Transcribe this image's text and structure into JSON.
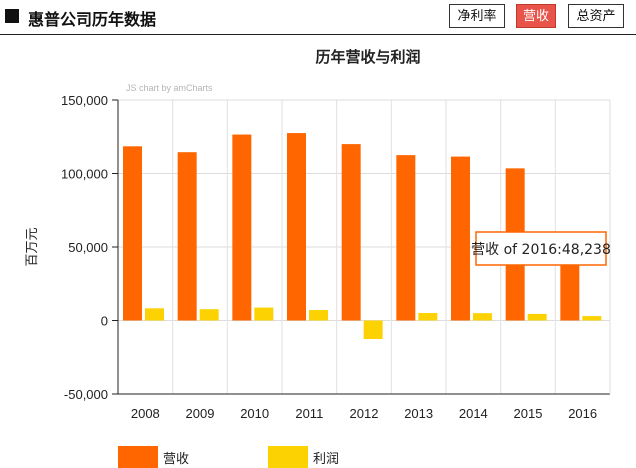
{
  "header": {
    "title": "惠普公司历年数据",
    "tabs": [
      {
        "label": "净利率",
        "active": false
      },
      {
        "label": "营收",
        "active": true
      },
      {
        "label": "总资产",
        "active": false
      }
    ]
  },
  "chart_data": {
    "type": "bar",
    "title": "历年营收与利润",
    "credit": "JS chart by amCharts",
    "ylabel": "百万元",
    "xlabel": "",
    "ylim": [
      -50000,
      150000
    ],
    "yticks": [
      150000,
      100000,
      50000,
      0,
      -50000
    ],
    "ytick_labels": [
      "150,000",
      "100,000",
      "50,000",
      "0",
      "-50,000"
    ],
    "categories": [
      "2008",
      "2009",
      "2010",
      "2011",
      "2012",
      "2013",
      "2014",
      "2015",
      "2016"
    ],
    "series": [
      {
        "name": "营收",
        "color": "#ff6600",
        "values": [
          118500,
          114500,
          126500,
          127500,
          120000,
          112500,
          111500,
          103500,
          48238
        ]
      },
      {
        "name": "利润",
        "color": "#fcd202",
        "values": [
          8300,
          7700,
          8800,
          7100,
          -12600,
          5100,
          5000,
          4500,
          3000
        ]
      }
    ],
    "grid": true,
    "legend_position": "bottom-left",
    "tooltip": {
      "series": "营收",
      "connector": "of",
      "category": "2016",
      "value_text": "48,238"
    }
  }
}
